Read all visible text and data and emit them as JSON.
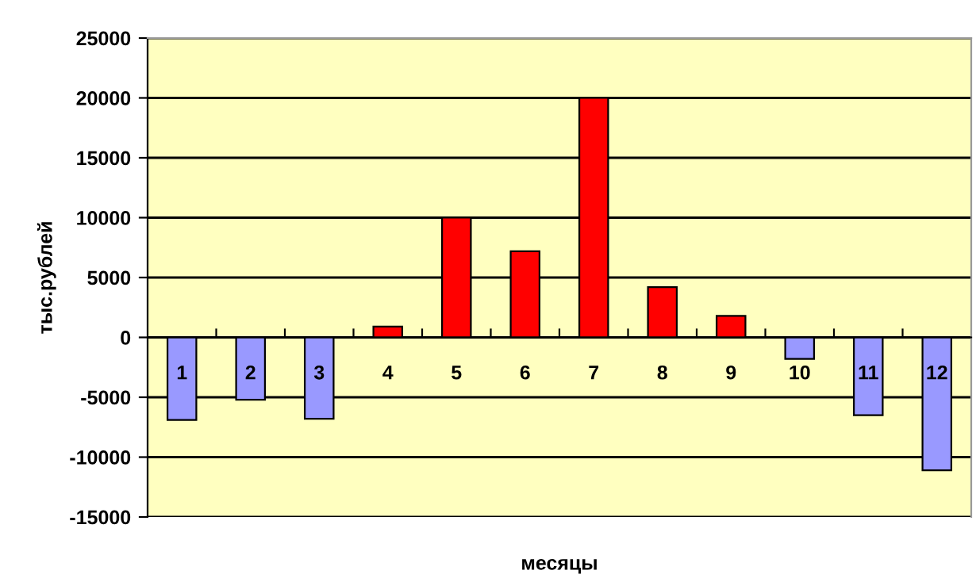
{
  "chart_data": {
    "type": "bar",
    "xlabel": "месяцы",
    "ylabel": "тыс.рублей",
    "categories": [
      "1",
      "2",
      "3",
      "4",
      "5",
      "6",
      "7",
      "8",
      "9",
      "10",
      "11",
      "12"
    ],
    "values": [
      -6900,
      -5200,
      -6800,
      900,
      10000,
      7200,
      20000,
      4200,
      1800,
      -1800,
      -6500,
      -11100
    ],
    "colors": [
      "#9999ff",
      "#9999ff",
      "#9999ff",
      "#ff0000",
      "#ff0000",
      "#ff0000",
      "#ff0000",
      "#ff0000",
      "#ff0000",
      "#9999ff",
      "#9999ff",
      "#9999ff"
    ],
    "ylim": [
      -15000,
      25000
    ],
    "yticks": [
      -15000,
      -10000,
      -5000,
      0,
      5000,
      10000,
      15000,
      20000,
      25000
    ],
    "grid": "y"
  }
}
